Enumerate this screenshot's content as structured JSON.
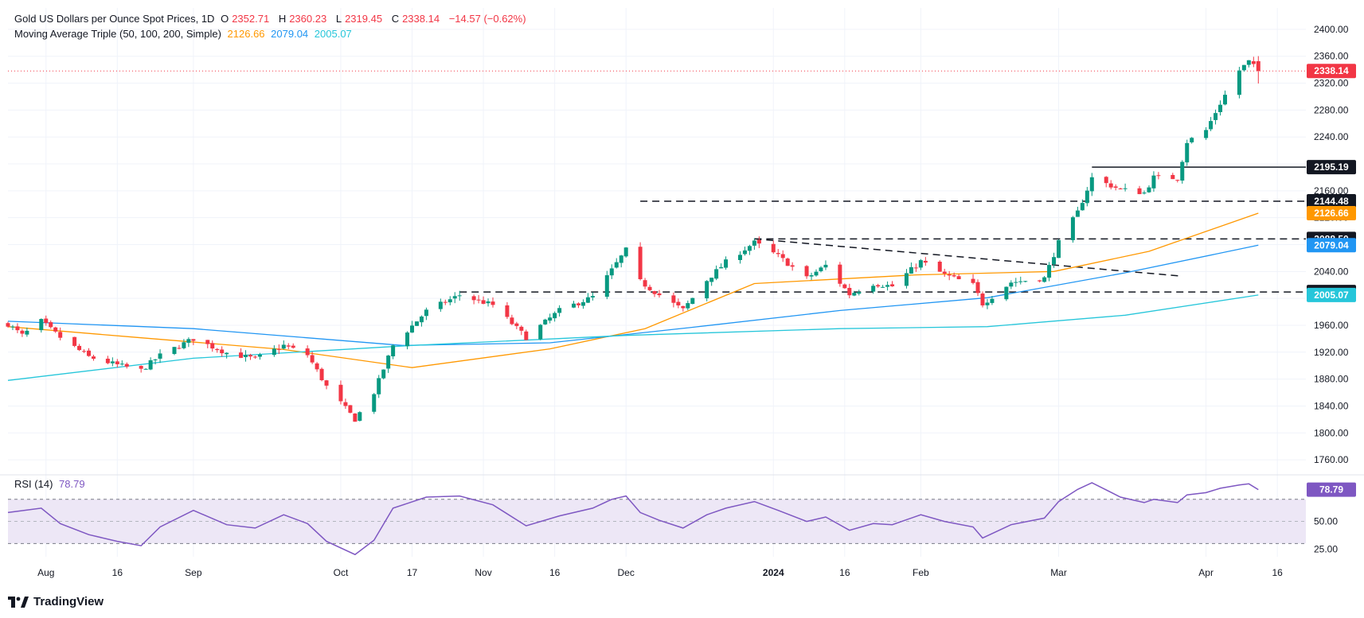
{
  "header": {
    "symbol_title": "Gold US Dollars per Ounce Spot Prices, 1D",
    "open_label": "O",
    "open": "2352.71",
    "high_label": "H",
    "high": "2360.23",
    "low_label": "L",
    "low": "2319.45",
    "close_label": "C",
    "close": "2338.14",
    "change": "−14.57 (−0.62%)"
  },
  "ma_legend": {
    "title": "Moving Average Triple (50, 100, 200, Simple)",
    "ma50": "2126.66",
    "ma100": "2079.04",
    "ma200": "2005.07"
  },
  "rsi_legend": {
    "title": "RSI (14)",
    "value": "78.79"
  },
  "branding": {
    "name": "TradingView"
  },
  "colors": {
    "up": "#089981",
    "down": "#f23645",
    "ma50": "#ff9800",
    "ma100": "#2196f3",
    "ma200": "#26c6da",
    "rsi": "#7e57c2",
    "rsi_band": "#ede7f6",
    "grid": "#f0f3fa"
  },
  "chart_data": [
    {
      "type": "candlestick",
      "title": "Gold US Dollars per Ounce Spot Prices, 1D",
      "y_range": [
        1740,
        2420
      ],
      "y_ticks": [
        1760,
        1800,
        1840,
        1880,
        1920,
        1960,
        2000,
        2040,
        2080,
        2120,
        2160,
        2200,
        2240,
        2280,
        2320,
        2360,
        2400
      ],
      "x_range": [
        "2023-07-24",
        "2024-04-22"
      ],
      "x_ticks": [
        {
          "date": "2023-08-01",
          "label": "Aug"
        },
        {
          "date": "2023-08-16",
          "label": "16"
        },
        {
          "date": "2023-09-01",
          "label": "Sep"
        },
        {
          "date": "2023-10-02",
          "label": "Oct"
        },
        {
          "date": "2023-10-17",
          "label": "17"
        },
        {
          "date": "2023-11-01",
          "label": "Nov"
        },
        {
          "date": "2023-11-16",
          "label": "16"
        },
        {
          "date": "2023-12-01",
          "label": "Dec"
        },
        {
          "date": "2024-01-01",
          "label": "2024"
        },
        {
          "date": "2024-01-16",
          "label": "16"
        },
        {
          "date": "2024-02-01",
          "label": "Feb"
        },
        {
          "date": "2024-03-01",
          "label": "Mar"
        },
        {
          "date": "2024-04-01",
          "label": "Apr"
        },
        {
          "date": "2024-04-16",
          "label": "16"
        }
      ],
      "price_anchors": [
        [
          "2023-07-24",
          1962
        ],
        [
          "2023-07-27",
          1945
        ],
        [
          "2023-07-31",
          1966
        ],
        [
          "2023-08-04",
          1942
        ],
        [
          "2023-08-10",
          1913
        ],
        [
          "2023-08-16",
          1901
        ],
        [
          "2023-08-21",
          1893
        ],
        [
          "2023-08-25",
          1915
        ],
        [
          "2023-09-01",
          1940
        ],
        [
          "2023-09-08",
          1919
        ],
        [
          "2023-09-14",
          1910
        ],
        [
          "2023-09-20",
          1930
        ],
        [
          "2023-09-25",
          1916
        ],
        [
          "2023-09-29",
          1869
        ],
        [
          "2023-10-05",
          1820
        ],
        [
          "2023-10-09",
          1860
        ],
        [
          "2023-10-13",
          1930
        ],
        [
          "2023-10-20",
          1981
        ],
        [
          "2023-10-27",
          2005
        ],
        [
          "2023-11-03",
          1990
        ],
        [
          "2023-11-10",
          1942
        ],
        [
          "2023-11-17",
          1982
        ],
        [
          "2023-11-24",
          2002
        ],
        [
          "2023-11-28",
          2042
        ],
        [
          "2023-12-01",
          2072
        ],
        [
          "2023-12-04",
          2025
        ],
        [
          "2023-12-08",
          2005
        ],
        [
          "2023-12-13",
          1983
        ],
        [
          "2023-12-18",
          2027
        ],
        [
          "2023-12-22",
          2054
        ],
        [
          "2023-12-28",
          2083
        ],
        [
          "2024-01-02",
          2063
        ],
        [
          "2024-01-08",
          2030
        ],
        [
          "2024-01-12",
          2049
        ],
        [
          "2024-01-17",
          2006
        ],
        [
          "2024-01-22",
          2022
        ],
        [
          "2024-01-26",
          2018
        ],
        [
          "2024-02-01",
          2055
        ],
        [
          "2024-02-06",
          2035
        ],
        [
          "2024-02-12",
          2020
        ],
        [
          "2024-02-14",
          1992
        ],
        [
          "2024-02-20",
          2024
        ],
        [
          "2024-02-27",
          2030
        ],
        [
          "2024-03-01",
          2083
        ],
        [
          "2024-03-05",
          2128
        ],
        [
          "2024-03-08",
          2179
        ],
        [
          "2024-03-14",
          2162
        ],
        [
          "2024-03-19",
          2157
        ],
        [
          "2024-03-21",
          2180
        ],
        [
          "2024-03-26",
          2179
        ],
        [
          "2024-03-28",
          2233
        ],
        [
          "2024-04-01",
          2250
        ],
        [
          "2024-04-04",
          2290
        ],
        [
          "2024-04-08",
          2339
        ],
        [
          "2024-04-10",
          2352
        ],
        [
          "2024-04-12",
          2338.14
        ]
      ],
      "last_candle": {
        "date": "2024-04-12",
        "open": 2352.71,
        "high": 2360.23,
        "low": 2319.45,
        "close": 2338.14
      },
      "moving_averages": [
        {
          "name": "MA 50",
          "period": 50,
          "last": 2126.66,
          "points": [
            [
              "2023-07-24",
              1958
            ],
            [
              "2023-08-20",
              1942
            ],
            [
              "2023-09-20",
              1924
            ],
            [
              "2023-10-17",
              1897
            ],
            [
              "2023-11-15",
              1925
            ],
            [
              "2023-12-05",
              1955
            ],
            [
              "2023-12-28",
              2022
            ],
            [
              "2024-01-31",
              2035
            ],
            [
              "2024-02-29",
              2040
            ],
            [
              "2024-03-20",
              2070
            ],
            [
              "2024-04-12",
              2126.66
            ]
          ]
        },
        {
          "name": "MA 100",
          "period": 100,
          "last": 2079.04,
          "points": [
            [
              "2023-07-24",
              1966
            ],
            [
              "2023-09-01",
              1955
            ],
            [
              "2023-10-15",
              1930
            ],
            [
              "2023-11-15",
              1934
            ],
            [
              "2023-12-15",
              1957
            ],
            [
              "2024-01-15",
              1982
            ],
            [
              "2024-02-15",
              2001
            ],
            [
              "2024-03-15",
              2038
            ],
            [
              "2024-04-12",
              2079.04
            ]
          ]
        },
        {
          "name": "MA 200",
          "period": 200,
          "last": 2005.07,
          "points": [
            [
              "2023-07-24",
              1878
            ],
            [
              "2023-09-01",
              1911
            ],
            [
              "2023-10-17",
              1930
            ],
            [
              "2023-12-01",
              1945
            ],
            [
              "2024-01-15",
              1955
            ],
            [
              "2024-02-15",
              1958
            ],
            [
              "2024-03-15",
              1975
            ],
            [
              "2024-04-12",
              2005.07
            ]
          ]
        }
      ],
      "horizontal_levels": [
        {
          "price": 2195.19,
          "from": "2024-03-08",
          "style": "solid",
          "label": "2195.19"
        },
        {
          "price": 2144.48,
          "from": "2023-12-04",
          "style": "dashed",
          "label": "2144.48"
        },
        {
          "price": 2088.5,
          "from": "2023-12-28",
          "style": "dashed",
          "label": "2088.50"
        },
        {
          "price": 2009.49,
          "from": "2023-10-27",
          "style": "dashed",
          "label": "2009.49"
        }
      ],
      "trendline": {
        "from": [
          "2023-12-28",
          2088.5
        ],
        "to": [
          "2024-03-27",
          2033
        ],
        "style": "dashed"
      },
      "price_labels": [
        {
          "price": 2338.14,
          "label": "2338.14",
          "kind": "last"
        },
        {
          "price": 2195.19,
          "label": "2195.19",
          "kind": "level"
        },
        {
          "price": 2144.48,
          "label": "2144.48",
          "kind": "level"
        },
        {
          "price": 2126.66,
          "label": "2126.66",
          "kind": "ma50"
        },
        {
          "price": 2088.5,
          "label": "2088.50",
          "kind": "level"
        },
        {
          "price": 2079.04,
          "label": "2079.04",
          "kind": "ma100"
        },
        {
          "price": 2009.49,
          "label": "2009.49",
          "kind": "level"
        },
        {
          "price": 2005.07,
          "label": "2005.07",
          "kind": "ma200"
        }
      ]
    },
    {
      "type": "line",
      "title": "RSI (14)",
      "y_range": [
        18,
        90
      ],
      "y_ticks": [
        25,
        50
      ],
      "bands": [
        30,
        50,
        70
      ],
      "last": 78.79,
      "points": [
        [
          "2023-07-24",
          58
        ],
        [
          "2023-07-31",
          62
        ],
        [
          "2023-08-04",
          48
        ],
        [
          "2023-08-10",
          38
        ],
        [
          "2023-08-16",
          32
        ],
        [
          "2023-08-21",
          28
        ],
        [
          "2023-08-25",
          45
        ],
        [
          "2023-09-01",
          60
        ],
        [
          "2023-09-08",
          47
        ],
        [
          "2023-09-14",
          44
        ],
        [
          "2023-09-20",
          56
        ],
        [
          "2023-09-25",
          48
        ],
        [
          "2023-09-29",
          32
        ],
        [
          "2023-10-05",
          20
        ],
        [
          "2023-10-09",
          33
        ],
        [
          "2023-10-13",
          62
        ],
        [
          "2023-10-20",
          72
        ],
        [
          "2023-10-27",
          73
        ],
        [
          "2023-11-03",
          65
        ],
        [
          "2023-11-10",
          46
        ],
        [
          "2023-11-17",
          55
        ],
        [
          "2023-11-24",
          62
        ],
        [
          "2023-11-28",
          70
        ],
        [
          "2023-12-01",
          73
        ],
        [
          "2023-12-04",
          58
        ],
        [
          "2023-12-08",
          51
        ],
        [
          "2023-12-13",
          44
        ],
        [
          "2023-12-18",
          56
        ],
        [
          "2023-12-22",
          62
        ],
        [
          "2023-12-28",
          68
        ],
        [
          "2024-01-02",
          60
        ],
        [
          "2024-01-08",
          50
        ],
        [
          "2024-01-12",
          54
        ],
        [
          "2024-01-17",
          42
        ],
        [
          "2024-01-22",
          48
        ],
        [
          "2024-01-26",
          47
        ],
        [
          "2024-02-01",
          56
        ],
        [
          "2024-02-06",
          50
        ],
        [
          "2024-02-12",
          45
        ],
        [
          "2024-02-14",
          35
        ],
        [
          "2024-02-20",
          47
        ],
        [
          "2024-02-27",
          53
        ],
        [
          "2024-03-01",
          68
        ],
        [
          "2024-03-05",
          79
        ],
        [
          "2024-03-08",
          85
        ],
        [
          "2024-03-14",
          72
        ],
        [
          "2024-03-19",
          67
        ],
        [
          "2024-03-21",
          70
        ],
        [
          "2024-03-26",
          67
        ],
        [
          "2024-03-28",
          74
        ],
        [
          "2024-04-01",
          76
        ],
        [
          "2024-04-04",
          80
        ],
        [
          "2024-04-08",
          83
        ],
        [
          "2024-04-10",
          84
        ],
        [
          "2024-04-12",
          78.79
        ]
      ]
    }
  ]
}
